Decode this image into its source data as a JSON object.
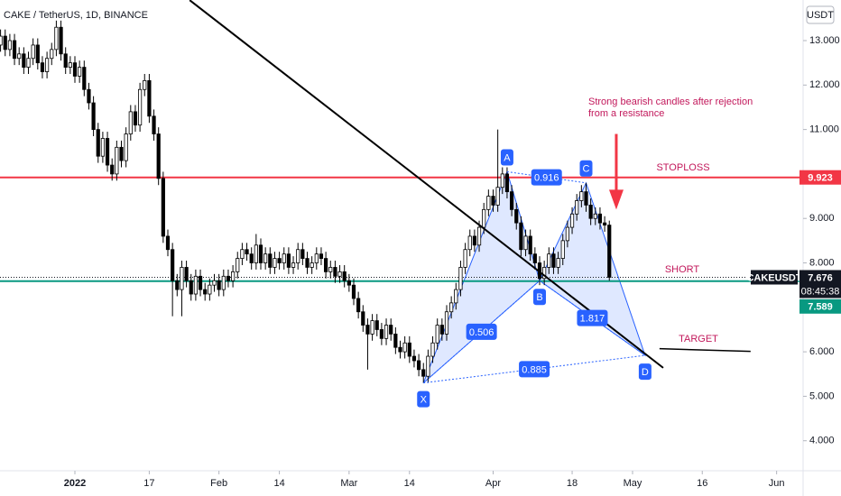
{
  "chart_data": {
    "type": "candlestick",
    "title": "CAKE / TetherUS, 1D, BINANCE",
    "currency": "USDT",
    "candles": [
      [
        12.9,
        13.25,
        12.75,
        13.1
      ],
      [
        13.1,
        13.25,
        12.65,
        12.8
      ],
      [
        12.8,
        13.15,
        12.65,
        13.0
      ],
      [
        13.0,
        13.15,
        12.45,
        12.6
      ],
      [
        12.6,
        12.85,
        12.45,
        12.7
      ],
      [
        12.7,
        12.85,
        12.25,
        12.4
      ],
      [
        12.4,
        12.75,
        12.25,
        12.6
      ],
      [
        12.6,
        13.05,
        12.45,
        12.9
      ],
      [
        12.9,
        13.05,
        12.35,
        12.5
      ],
      [
        12.5,
        12.65,
        12.15,
        12.3
      ],
      [
        12.3,
        12.75,
        12.15,
        12.6
      ],
      [
        12.6,
        12.95,
        12.45,
        12.8
      ],
      [
        12.8,
        13.45,
        12.65,
        13.3
      ],
      [
        13.3,
        13.45,
        12.55,
        12.7
      ],
      [
        12.7,
        12.85,
        12.25,
        12.4
      ],
      [
        12.4,
        12.65,
        12.25,
        12.5
      ],
      [
        12.5,
        12.65,
        12.05,
        12.2
      ],
      [
        12.2,
        12.55,
        12.05,
        12.4
      ],
      [
        12.4,
        12.55,
        11.75,
        11.9
      ],
      [
        11.9,
        12.05,
        11.45,
        11.6
      ],
      [
        11.6,
        11.75,
        10.85,
        11.0
      ],
      [
        11.0,
        11.15,
        10.25,
        10.4
      ],
      [
        10.4,
        10.95,
        10.25,
        10.8
      ],
      [
        10.8,
        10.95,
        10.05,
        10.2
      ],
      [
        10.2,
        10.35,
        9.85,
        10.0
      ],
      [
        10.0,
        10.75,
        9.85,
        10.6
      ],
      [
        10.6,
        10.75,
        10.15,
        10.3
      ],
      [
        10.3,
        11.05,
        10.15,
        10.9
      ],
      [
        10.9,
        11.55,
        10.75,
        11.4
      ],
      [
        11.4,
        11.55,
        10.95,
        11.1
      ],
      [
        11.1,
        12.05,
        10.95,
        11.9
      ],
      [
        11.9,
        12.25,
        11.75,
        12.1
      ],
      [
        12.1,
        12.25,
        11.15,
        11.3
      ],
      [
        11.3,
        11.45,
        10.75,
        10.9
      ],
      [
        10.9,
        11.05,
        9.75,
        9.9
      ],
      [
        9.9,
        10.05,
        8.45,
        8.6
      ],
      [
        8.6,
        8.75,
        8.15,
        8.3
      ],
      [
        8.3,
        8.45,
        6.8,
        7.6
      ],
      [
        7.6,
        7.75,
        7.25,
        7.4
      ],
      [
        7.4,
        8.05,
        6.8,
        7.9
      ],
      [
        7.9,
        8.05,
        7.45,
        7.6
      ],
      [
        7.6,
        7.75,
        7.15,
        7.3
      ],
      [
        7.3,
        7.85,
        7.15,
        7.7
      ],
      [
        7.7,
        7.85,
        7.25,
        7.4
      ],
      [
        7.4,
        7.55,
        7.15,
        7.3
      ],
      [
        7.3,
        7.65,
        7.15,
        7.5
      ],
      [
        7.5,
        7.75,
        7.35,
        7.6
      ],
      [
        7.6,
        7.75,
        7.25,
        7.4
      ],
      [
        7.4,
        7.85,
        7.25,
        7.7
      ],
      [
        7.7,
        7.85,
        7.45,
        7.6
      ],
      [
        7.6,
        7.95,
        7.45,
        7.8
      ],
      [
        7.8,
        8.25,
        7.65,
        8.1
      ],
      [
        8.1,
        8.45,
        7.95,
        8.3
      ],
      [
        8.3,
        8.45,
        8.05,
        8.2
      ],
      [
        8.2,
        8.35,
        7.85,
        8.0
      ],
      [
        8.0,
        8.65,
        7.85,
        8.4
      ],
      [
        8.4,
        8.55,
        7.85,
        8.0
      ],
      [
        8.0,
        8.35,
        7.85,
        8.2
      ],
      [
        8.2,
        8.35,
        7.75,
        7.9
      ],
      [
        7.9,
        8.25,
        7.75,
        8.1
      ],
      [
        8.1,
        8.25,
        7.85,
        8.0
      ],
      [
        8.0,
        8.35,
        7.85,
        8.2
      ],
      [
        8.2,
        8.35,
        7.75,
        7.9
      ],
      [
        7.9,
        8.15,
        7.75,
        8.0
      ],
      [
        8.0,
        8.45,
        7.85,
        8.3
      ],
      [
        8.3,
        8.45,
        7.95,
        8.1
      ],
      [
        8.1,
        8.25,
        7.75,
        7.9
      ],
      [
        7.9,
        8.15,
        7.75,
        8.0
      ],
      [
        8.0,
        8.35,
        7.85,
        8.2
      ],
      [
        8.2,
        8.35,
        7.95,
        8.1
      ],
      [
        8.1,
        8.25,
        7.65,
        7.8
      ],
      [
        7.8,
        8.05,
        7.65,
        7.9
      ],
      [
        7.9,
        8.05,
        7.55,
        7.7
      ],
      [
        7.7,
        7.95,
        7.55,
        7.8
      ],
      [
        7.8,
        7.95,
        7.45,
        7.6
      ],
      [
        7.6,
        7.75,
        7.35,
        7.5
      ],
      [
        7.5,
        7.65,
        7.05,
        7.2
      ],
      [
        7.2,
        7.35,
        6.75,
        6.9
      ],
      [
        6.9,
        7.05,
        6.45,
        6.6
      ],
      [
        6.6,
        6.75,
        5.6,
        6.4
      ],
      [
        6.4,
        6.85,
        6.25,
        6.7
      ],
      [
        6.7,
        6.85,
        6.35,
        6.5
      ],
      [
        6.5,
        6.65,
        6.15,
        6.3
      ],
      [
        6.3,
        6.75,
        6.15,
        6.6
      ],
      [
        6.6,
        6.75,
        6.25,
        6.4
      ],
      [
        6.4,
        6.55,
        5.95,
        6.1
      ],
      [
        6.1,
        6.25,
        5.85,
        6.0
      ],
      [
        6.0,
        6.35,
        5.85,
        6.2
      ],
      [
        6.2,
        6.35,
        5.75,
        5.9
      ],
      [
        5.9,
        6.05,
        5.65,
        5.8
      ],
      [
        5.8,
        5.95,
        5.45,
        5.6
      ],
      [
        5.6,
        5.75,
        5.3,
        5.45
      ],
      [
        5.45,
        6.05,
        5.3,
        5.9
      ],
      [
        5.9,
        6.35,
        5.75,
        6.2
      ],
      [
        6.2,
        6.75,
        6.05,
        6.6
      ],
      [
        6.6,
        6.75,
        6.25,
        6.4
      ],
      [
        6.4,
        7.05,
        6.25,
        6.9
      ],
      [
        6.9,
        7.25,
        6.75,
        7.1
      ],
      [
        7.1,
        7.55,
        6.95,
        7.4
      ],
      [
        7.4,
        8.05,
        7.25,
        7.9
      ],
      [
        7.9,
        8.45,
        7.75,
        8.3
      ],
      [
        8.3,
        8.75,
        8.15,
        8.6
      ],
      [
        8.6,
        8.75,
        8.25,
        8.4
      ],
      [
        8.4,
        8.95,
        8.25,
        8.8
      ],
      [
        8.8,
        9.35,
        8.65,
        9.2
      ],
      [
        9.2,
        9.65,
        9.05,
        9.5
      ],
      [
        9.5,
        9.65,
        9.15,
        9.3
      ],
      [
        9.3,
        11.0,
        9.15,
        9.7
      ],
      [
        9.7,
        10.15,
        9.55,
        10.0
      ],
      [
        10.0,
        10.15,
        9.45,
        9.6
      ],
      [
        9.6,
        9.75,
        9.05,
        9.2
      ],
      [
        9.2,
        9.35,
        8.75,
        8.9
      ],
      [
        8.9,
        9.05,
        8.15,
        8.3
      ],
      [
        8.3,
        8.75,
        8.15,
        8.6
      ],
      [
        8.6,
        8.75,
        8.05,
        8.2
      ],
      [
        8.2,
        8.35,
        7.85,
        8.0
      ],
      [
        8.0,
        8.15,
        7.5,
        7.65
      ],
      [
        7.65,
        8.05,
        7.5,
        7.9
      ],
      [
        7.9,
        8.35,
        7.75,
        8.2
      ],
      [
        8.2,
        8.35,
        7.75,
        7.9
      ],
      [
        7.9,
        8.25,
        7.75,
        8.1
      ],
      [
        8.1,
        8.65,
        7.95,
        8.5
      ],
      [
        8.5,
        8.95,
        8.35,
        8.8
      ],
      [
        8.8,
        9.25,
        8.65,
        9.1
      ],
      [
        9.1,
        9.55,
        8.95,
        9.4
      ],
      [
        9.4,
        9.75,
        9.25,
        9.6
      ],
      [
        9.6,
        9.8,
        9.15,
        9.3
      ],
      [
        9.3,
        9.45,
        8.85,
        9.0
      ],
      [
        9.0,
        9.25,
        8.85,
        9.1
      ],
      [
        9.1,
        9.25,
        8.75,
        8.9
      ],
      [
        8.9,
        9.05,
        8.7,
        8.85
      ],
      [
        8.85,
        8.95,
        7.6,
        7.676
      ]
    ],
    "xlim": [
      -0.117,
      172.7
    ],
    "xticks": [
      {
        "value": 16,
        "label": "2022"
      },
      {
        "value": 32,
        "label": "17"
      },
      {
        "value": 47,
        "label": "Feb"
      },
      {
        "value": 60,
        "label": "14"
      },
      {
        "value": 75,
        "label": "Mar"
      },
      {
        "value": 88,
        "label": "14"
      },
      {
        "value": 106,
        "label": "Apr"
      },
      {
        "value": 123,
        "label": "18"
      },
      {
        "value": 136,
        "label": "May"
      },
      {
        "value": 151,
        "label": "16"
      },
      {
        "value": 167,
        "label": "Jun"
      }
    ],
    "ylim": [
      3.325,
      13.913
    ],
    "yticks": [
      {
        "value": 4,
        "label": "4.000"
      },
      {
        "value": 5,
        "label": "5.000"
      },
      {
        "value": 6,
        "label": "6.000"
      },
      {
        "value": 8,
        "label": "8.000"
      },
      {
        "value": 9,
        "label": "9.000"
      },
      {
        "value": 11,
        "label": "11.000"
      },
      {
        "value": 12,
        "label": "12.000"
      },
      {
        "value": 13,
        "label": "13.000"
      }
    ],
    "symbol": "CAKEUSDT",
    "last_price": {
      "value": 7.676,
      "label": "7.676"
    },
    "countdown": "08:45:38",
    "levels": [
      {
        "name": "STOPLOSS",
        "value": 9.923,
        "label": "9.923",
        "color": "#f23645"
      },
      {
        "name": "SHORT",
        "value": 7.589,
        "label": "7.589",
        "color": "#089981"
      }
    ],
    "target": {
      "name": "TARGET",
      "points": [
        [
          141.8,
          6.07
        ],
        [
          161.4,
          6.01
        ]
      ]
    },
    "trendline": [
      [
        40.7,
        13.91
      ],
      [
        142.6,
        5.64
      ]
    ],
    "pattern": [
      {
        "label": "X",
        "x": 91,
        "y": 5.3
      },
      {
        "label": "A",
        "x": 109,
        "y": 10.05
      },
      {
        "label": "B",
        "x": 116,
        "y": 7.6
      },
      {
        "label": "C",
        "x": 126,
        "y": 9.8
      },
      {
        "label": "D",
        "x": 138.7,
        "y": 5.92
      }
    ],
    "ratios": [
      0.916,
      0.506,
      1.817,
      0.885
    ],
    "note": "Strong bearish candles after rejection",
    "note_line2": "from a resistance",
    "arrow": [
      [
        132.5,
        10.9
      ],
      [
        132.5,
        9.2
      ]
    ]
  }
}
